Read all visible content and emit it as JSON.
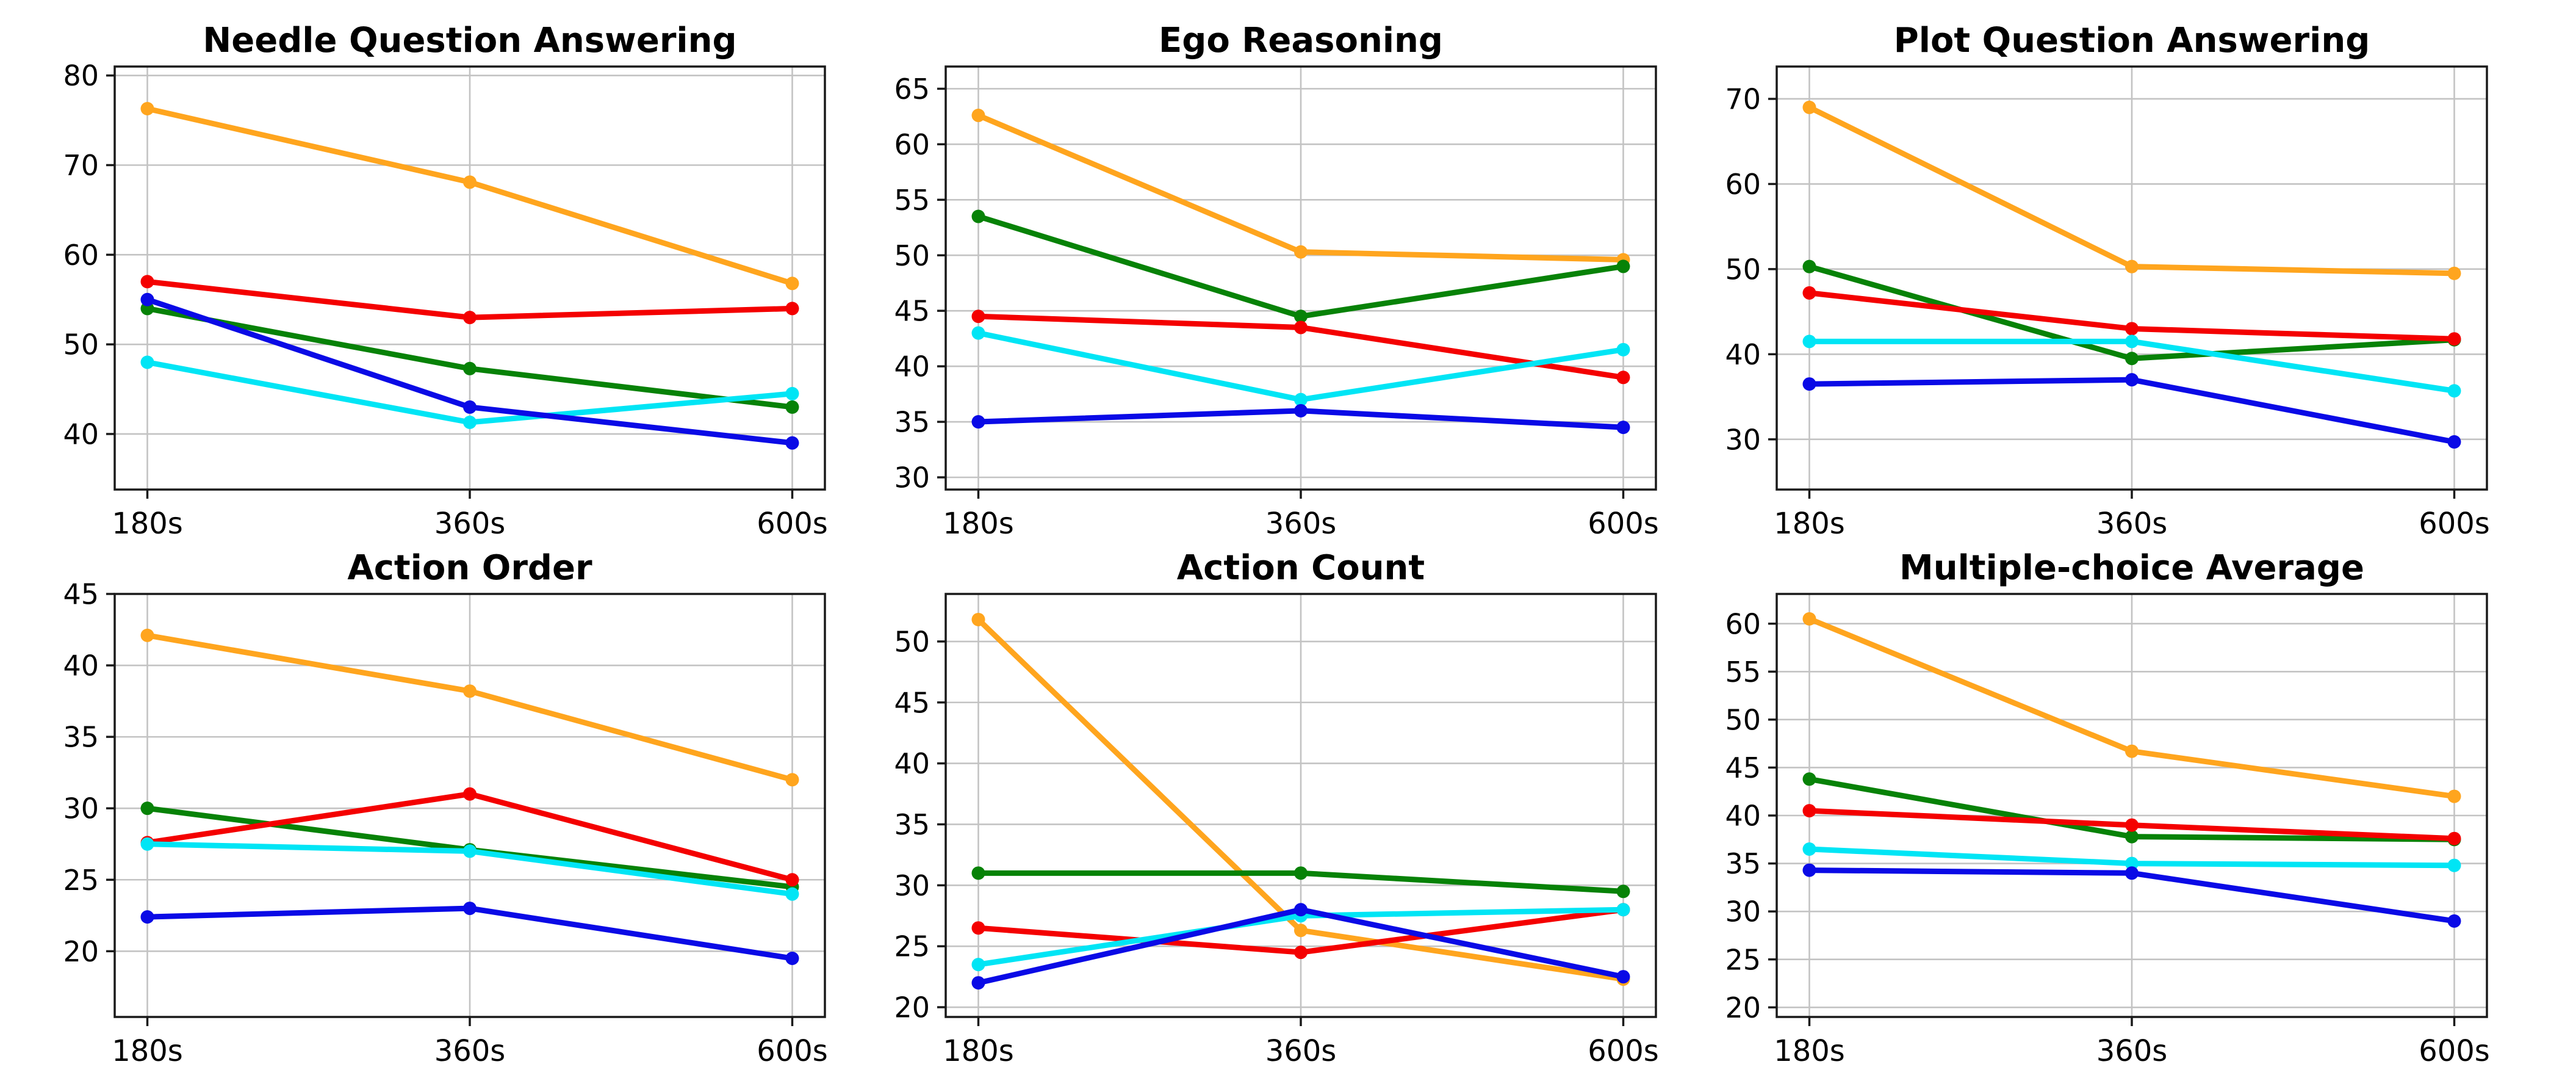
{
  "figure": {
    "background": "#ffffff",
    "grid": true,
    "grid_color": "#c3c3c3",
    "spine_color": "#1a1a1a",
    "legend": "none"
  },
  "x_categories": [
    "180s",
    "360s",
    "600s"
  ],
  "series_colors": {
    "orange": "#FFA51E",
    "green": "#078207",
    "red": "#F40000",
    "cyan": "#00E5F5",
    "blue": "#0A0AE6"
  },
  "chart_data": [
    {
      "type": "line",
      "title": "Needle Question Answering",
      "x": [
        "180s",
        "360s",
        "600s"
      ],
      "yticks": [
        40,
        50,
        60,
        70,
        80
      ],
      "ylim": [
        33.8,
        81.0
      ],
      "series": [
        {
          "name": "orange",
          "color": "#FFA51E",
          "values": [
            76.3,
            68.1,
            56.8
          ]
        },
        {
          "name": "green",
          "color": "#078207",
          "values": [
            54.0,
            47.3,
            43.0
          ]
        },
        {
          "name": "red",
          "color": "#F40000",
          "values": [
            57.0,
            53.0,
            54.0
          ]
        },
        {
          "name": "cyan",
          "color": "#00E5F5",
          "values": [
            48.0,
            41.3,
            44.5
          ]
        },
        {
          "name": "blue",
          "color": "#0A0AE6",
          "values": [
            55.0,
            43.0,
            39.0
          ]
        }
      ]
    },
    {
      "type": "line",
      "title": "Ego Reasoning",
      "x": [
        "180s",
        "360s",
        "600s"
      ],
      "yticks": [
        30,
        35,
        40,
        45,
        50,
        55,
        60,
        65
      ],
      "ylim": [
        28.9,
        67.0
      ],
      "series": [
        {
          "name": "orange",
          "color": "#FFA51E",
          "values": [
            62.6,
            50.3,
            49.6
          ]
        },
        {
          "name": "green",
          "color": "#078207",
          "values": [
            53.5,
            44.5,
            49.0
          ]
        },
        {
          "name": "red",
          "color": "#F40000",
          "values": [
            44.5,
            43.5,
            39.0
          ]
        },
        {
          "name": "cyan",
          "color": "#00E5F5",
          "values": [
            43.0,
            37.0,
            41.5
          ]
        },
        {
          "name": "blue",
          "color": "#0A0AE6",
          "values": [
            35.0,
            36.0,
            34.5
          ]
        }
      ]
    },
    {
      "type": "line",
      "title": "Plot Question Answering",
      "x": [
        "180s",
        "360s",
        "600s"
      ],
      "yticks": [
        30,
        40,
        50,
        60,
        70
      ],
      "ylim": [
        24.1,
        73.8
      ],
      "series": [
        {
          "name": "orange",
          "color": "#FFA51E",
          "values": [
            69.0,
            50.3,
            49.5
          ]
        },
        {
          "name": "green",
          "color": "#078207",
          "values": [
            50.3,
            39.5,
            41.7
          ]
        },
        {
          "name": "red",
          "color": "#F40000",
          "values": [
            47.2,
            43.0,
            41.8
          ]
        },
        {
          "name": "cyan",
          "color": "#00E5F5",
          "values": [
            41.5,
            41.5,
            35.7
          ]
        },
        {
          "name": "blue",
          "color": "#0A0AE6",
          "values": [
            36.5,
            37.0,
            29.7
          ]
        }
      ]
    },
    {
      "type": "line",
      "title": "Action Order",
      "x": [
        "180s",
        "360s",
        "600s"
      ],
      "yticks": [
        20,
        25,
        30,
        35,
        40,
        45
      ],
      "ylim": [
        15.4,
        45.0
      ],
      "series": [
        {
          "name": "orange",
          "color": "#FFA51E",
          "values": [
            42.1,
            38.2,
            32.0
          ]
        },
        {
          "name": "green",
          "color": "#078207",
          "values": [
            30.0,
            27.1,
            24.5
          ]
        },
        {
          "name": "red",
          "color": "#F40000",
          "values": [
            27.6,
            31.0,
            25.0
          ]
        },
        {
          "name": "cyan",
          "color": "#00E5F5",
          "values": [
            27.5,
            27.0,
            24.0
          ]
        },
        {
          "name": "blue",
          "color": "#0A0AE6",
          "values": [
            22.4,
            23.0,
            19.5
          ]
        }
      ]
    },
    {
      "type": "line",
      "title": "Action Count",
      "x": [
        "180s",
        "360s",
        "600s"
      ],
      "yticks": [
        20,
        25,
        30,
        35,
        40,
        45,
        50
      ],
      "ylim": [
        19.2,
        53.9
      ],
      "series": [
        {
          "name": "orange",
          "color": "#FFA51E",
          "values": [
            51.8,
            26.3,
            22.3
          ]
        },
        {
          "name": "green",
          "color": "#078207",
          "values": [
            31.0,
            31.0,
            29.5
          ]
        },
        {
          "name": "red",
          "color": "#F40000",
          "values": [
            26.5,
            24.5,
            28.0
          ]
        },
        {
          "name": "cyan",
          "color": "#00E5F5",
          "values": [
            23.5,
            27.5,
            28.0
          ]
        },
        {
          "name": "blue",
          "color": "#0A0AE6",
          "values": [
            22.0,
            28.0,
            22.5
          ]
        }
      ]
    },
    {
      "type": "line",
      "title": "Multiple-choice Average",
      "x": [
        "180s",
        "360s",
        "600s"
      ],
      "yticks": [
        20,
        25,
        30,
        35,
        40,
        45,
        50,
        55,
        60
      ],
      "ylim": [
        19.0,
        63.1
      ],
      "series": [
        {
          "name": "orange",
          "color": "#FFA51E",
          "values": [
            60.5,
            46.7,
            42.0
          ]
        },
        {
          "name": "green",
          "color": "#078207",
          "values": [
            43.8,
            37.8,
            37.5
          ]
        },
        {
          "name": "red",
          "color": "#F40000",
          "values": [
            40.5,
            39.0,
            37.6
          ]
        },
        {
          "name": "cyan",
          "color": "#00E5F5",
          "values": [
            36.5,
            35.0,
            34.8
          ]
        },
        {
          "name": "blue",
          "color": "#0A0AE6",
          "values": [
            34.3,
            34.0,
            29.0
          ]
        }
      ]
    }
  ]
}
